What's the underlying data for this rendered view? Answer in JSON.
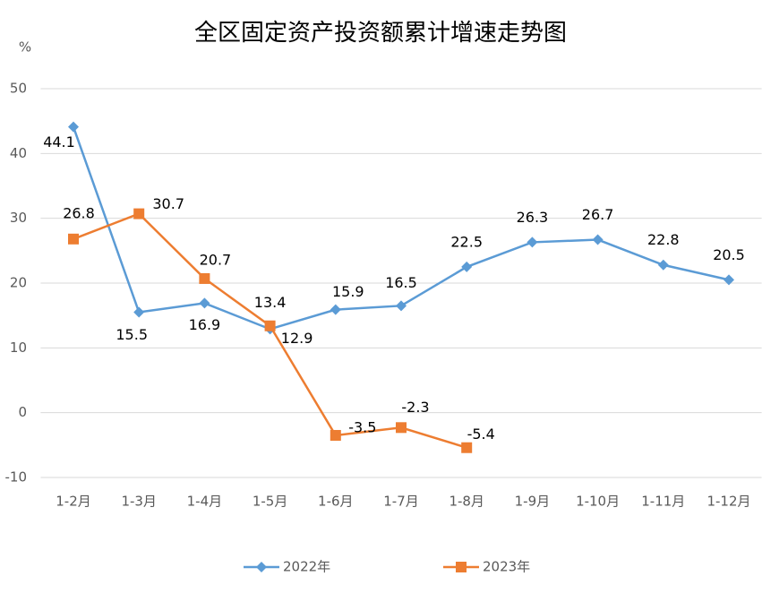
{
  "chart_data": {
    "type": "line",
    "title": "全区固定资产投资额累计增速走势图",
    "y_unit": "%",
    "categories": [
      "1-2月",
      "1-3月",
      "1-4月",
      "1-5月",
      "1-6月",
      "1-7月",
      "1-8月",
      "1-9月",
      "1-10月",
      "1-11月",
      "1-12月"
    ],
    "series": [
      {
        "name": "2022年",
        "color": "#5b9bd5",
        "marker": "diamond",
        "values": [
          44.1,
          15.5,
          16.9,
          12.9,
          15.9,
          16.5,
          22.5,
          26.3,
          26.7,
          22.8,
          20.5
        ]
      },
      {
        "name": "2023年",
        "color": "#ed7d31",
        "marker": "square",
        "values": [
          26.8,
          30.7,
          20.7,
          13.4,
          -3.5,
          -2.3,
          -5.4,
          null,
          null,
          null,
          null
        ]
      }
    ],
    "ylim": [
      -10,
      50
    ],
    "yticks": [
      -10,
      0,
      10,
      20,
      30,
      40,
      50
    ],
    "grid": true,
    "legend": "bottom"
  }
}
